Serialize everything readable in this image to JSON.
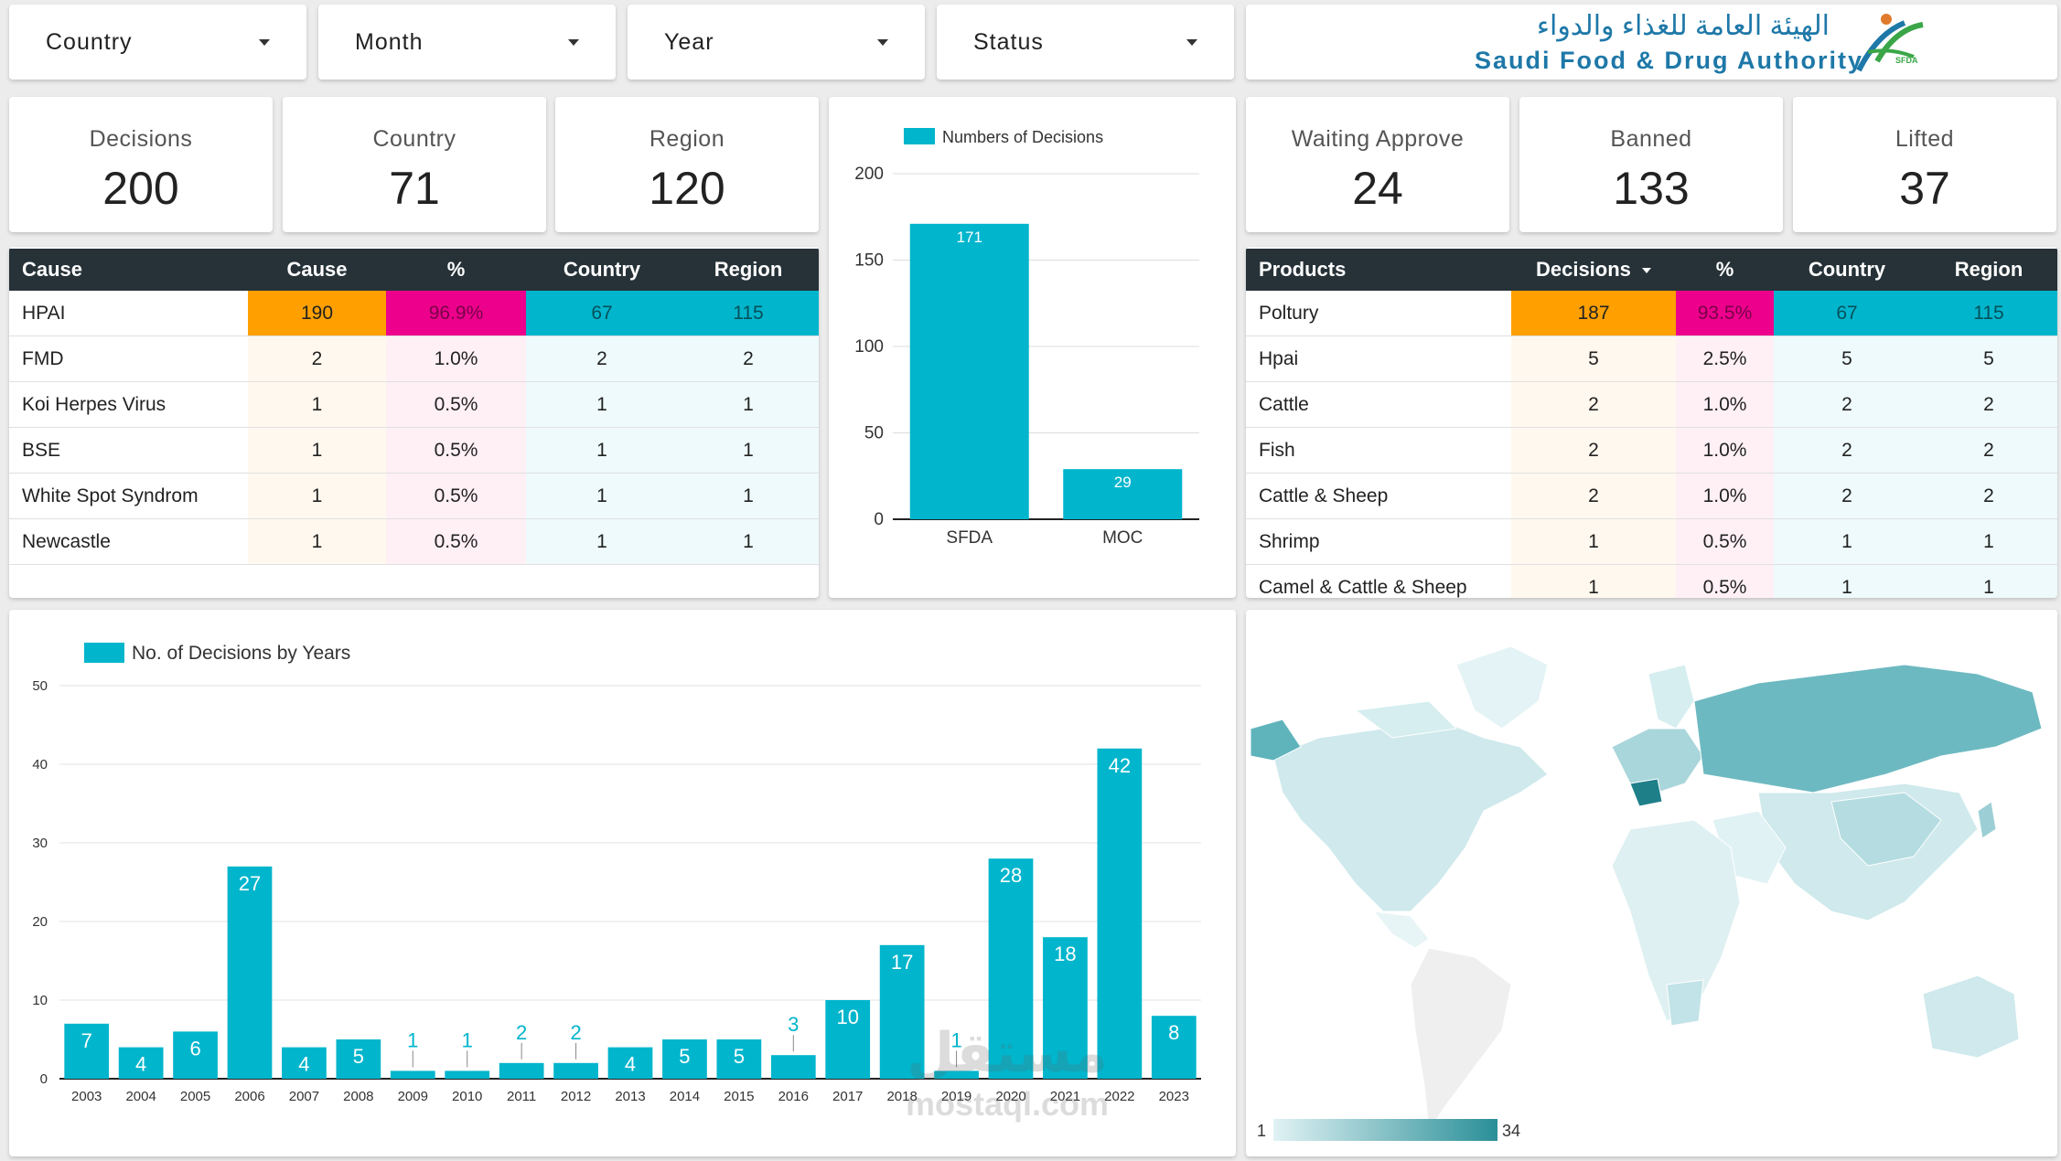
{
  "filters": [
    {
      "label": "Country"
    },
    {
      "label": "Month"
    },
    {
      "label": "Year"
    },
    {
      "label": "Status"
    }
  ],
  "logo": {
    "arabic": "الهيئة العامة للغذاء والدواء",
    "english": "Saudi Food & Drug Authority",
    "mark": "SFDA"
  },
  "kpis_left": [
    {
      "label": "Decisions",
      "value": "200"
    },
    {
      "label": "Country",
      "value": "71"
    },
    {
      "label": "Region",
      "value": "120"
    }
  ],
  "kpis_right": [
    {
      "label": "Waiting Approve",
      "value": "24"
    },
    {
      "label": "Banned",
      "value": "133"
    },
    {
      "label": "Lifted",
      "value": "37"
    }
  ],
  "cause_table": {
    "headers": [
      "Cause",
      "Cause",
      "%",
      "Country",
      "Region"
    ],
    "rows": [
      [
        "HPAI",
        "190",
        "96.9%",
        "67",
        "115"
      ],
      [
        "FMD",
        "2",
        "1.0%",
        "2",
        "2"
      ],
      [
        "Koi Herpes Virus",
        "1",
        "0.5%",
        "1",
        "1"
      ],
      [
        "BSE",
        "1",
        "0.5%",
        "1",
        "1"
      ],
      [
        "White Spot Syndrom",
        "1",
        "0.5%",
        "1",
        "1"
      ],
      [
        "Newcastle",
        "1",
        "0.5%",
        "1",
        "1"
      ]
    ]
  },
  "products_table": {
    "headers": [
      "Products",
      "Decisions",
      "%",
      "Country",
      "Region"
    ],
    "rows": [
      [
        "Poltury",
        "187",
        "93.5%",
        "67",
        "115"
      ],
      [
        "Hpai",
        "5",
        "2.5%",
        "5",
        "5"
      ],
      [
        "Cattle",
        "2",
        "1.0%",
        "2",
        "2"
      ],
      [
        "Fish",
        "2",
        "1.0%",
        "2",
        "2"
      ],
      [
        "Cattle & Sheep",
        "2",
        "1.0%",
        "2",
        "2"
      ],
      [
        "Shrimp",
        "1",
        "0.5%",
        "1",
        "1"
      ],
      [
        "Camel & Cattle & Sheep",
        "1",
        "0.5%",
        "1",
        "1"
      ]
    ]
  },
  "chart_data": [
    {
      "type": "bar",
      "legend": "Numbers of Decisions",
      "legend_position": "top-left",
      "categories": [
        "SFDA",
        "MOC"
      ],
      "values": [
        171,
        29
      ],
      "ylim": [
        0,
        200
      ],
      "yticks": [
        0,
        50,
        100,
        150,
        200
      ],
      "grid": true,
      "color": "#00b5cc"
    },
    {
      "type": "bar",
      "legend": "No. of Decisions by Years",
      "legend_position": "top-left",
      "categories": [
        "2003",
        "2004",
        "2005",
        "2006",
        "2007",
        "2008",
        "2009",
        "2010",
        "2011",
        "2012",
        "2013",
        "2014",
        "2015",
        "2016",
        "2017",
        "2018",
        "2019",
        "2020",
        "2021",
        "2022",
        "2023"
      ],
      "values": [
        7,
        4,
        6,
        27,
        4,
        5,
        1,
        1,
        2,
        2,
        4,
        5,
        5,
        3,
        10,
        17,
        1,
        28,
        18,
        42,
        8
      ],
      "ylim": [
        0,
        50
      ],
      "yticks": [
        0,
        10,
        20,
        30,
        40,
        50
      ],
      "grid": true,
      "color": "#00b5cc"
    }
  ],
  "map": {
    "scale_min": "1",
    "scale_max": "34",
    "color_low": "#e0f2f4",
    "color_high": "#2a8f98"
  },
  "watermark": {
    "text1": "مستقل",
    "text2": "mostaql.com"
  }
}
